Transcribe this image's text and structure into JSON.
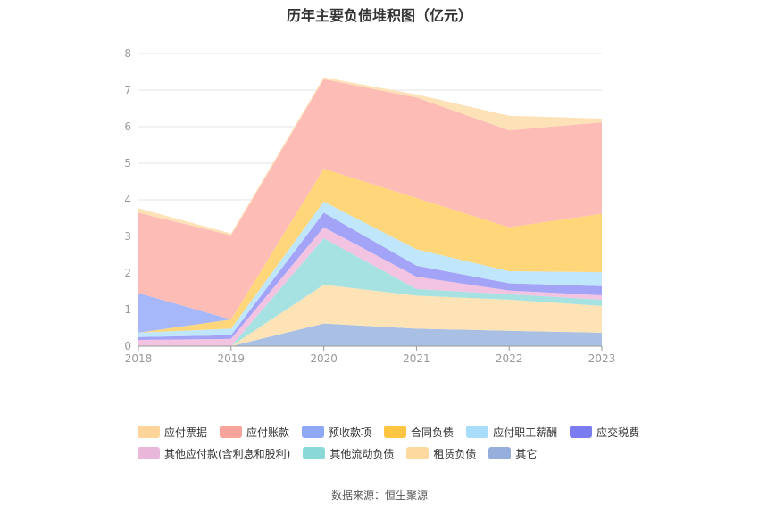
{
  "title": "历年主要负债堆积图（亿元）",
  "source": "数据来源：恒生聚源",
  "chart_data": {
    "type": "area",
    "stacked": true,
    "categories": [
      "2018",
      "2019",
      "2020",
      "2021",
      "2022",
      "2023"
    ],
    "ylim": [
      0,
      8
    ],
    "yticks": [
      0,
      1,
      2,
      3,
      4,
      5,
      6,
      7,
      8
    ],
    "grid": true,
    "legend_position": "bottom",
    "series": [
      {
        "name": "其它",
        "color": "#a9bfe3",
        "values": [
          0.0,
          0.0,
          0.62,
          0.48,
          0.42,
          0.37
        ]
      },
      {
        "name": "租赁负债",
        "color": "#fde3b6",
        "values": [
          0.0,
          0.0,
          1.06,
          0.9,
          0.85,
          0.73
        ]
      },
      {
        "name": "其他流动负债",
        "color": "#a6e2e1",
        "values": [
          0.0,
          0.0,
          1.27,
          0.18,
          0.15,
          0.17
        ]
      },
      {
        "name": "其他应付款(含利息和股利)",
        "color": "#f2c4e2",
        "values": [
          0.17,
          0.2,
          0.3,
          0.34,
          0.1,
          0.12
        ]
      },
      {
        "name": "应交税费",
        "color": "#a3a3f7",
        "values": [
          0.08,
          0.1,
          0.4,
          0.3,
          0.2,
          0.25
        ]
      },
      {
        "name": "应付职工薪酬",
        "color": "#bfe6fb",
        "values": [
          0.12,
          0.18,
          0.3,
          0.45,
          0.33,
          0.38
        ]
      },
      {
        "name": "合同负债",
        "color": "#ffd77a",
        "values": [
          0.0,
          0.25,
          0.9,
          1.4,
          1.2,
          1.6
        ]
      },
      {
        "name": "预收款项",
        "color": "#a6b8fa",
        "values": [
          1.08,
          0.0,
          0.0,
          0.0,
          0.0,
          0.0
        ]
      },
      {
        "name": "应付账款",
        "color": "#fdbcb6",
        "values": [
          2.2,
          2.3,
          2.45,
          2.75,
          2.65,
          2.5
        ]
      },
      {
        "name": "应付票据",
        "color": "#fde1b7",
        "values": [
          0.12,
          0.05,
          0.05,
          0.08,
          0.4,
          0.1
        ]
      }
    ]
  },
  "legend": {
    "rows": [
      [
        {
          "name": "应付票据",
          "color": "#fdd59a"
        },
        {
          "name": "应付账款",
          "color": "#f8a49c"
        },
        {
          "name": "预收款项",
          "color": "#8fa7f7"
        },
        {
          "name": "合同负债",
          "color": "#fdc542"
        },
        {
          "name": "应付职工薪酬",
          "color": "#a7dcfb"
        },
        {
          "name": "应交税费",
          "color": "#7b7cf0"
        }
      ],
      [
        {
          "name": "其他应付款(含利息和股利)",
          "color": "#e9b7d9"
        },
        {
          "name": "其他流动负债",
          "color": "#8ad8d7"
        },
        {
          "name": "租赁负债",
          "color": "#fdd9a0"
        },
        {
          "name": "其它",
          "color": "#95aedc"
        }
      ]
    ]
  }
}
